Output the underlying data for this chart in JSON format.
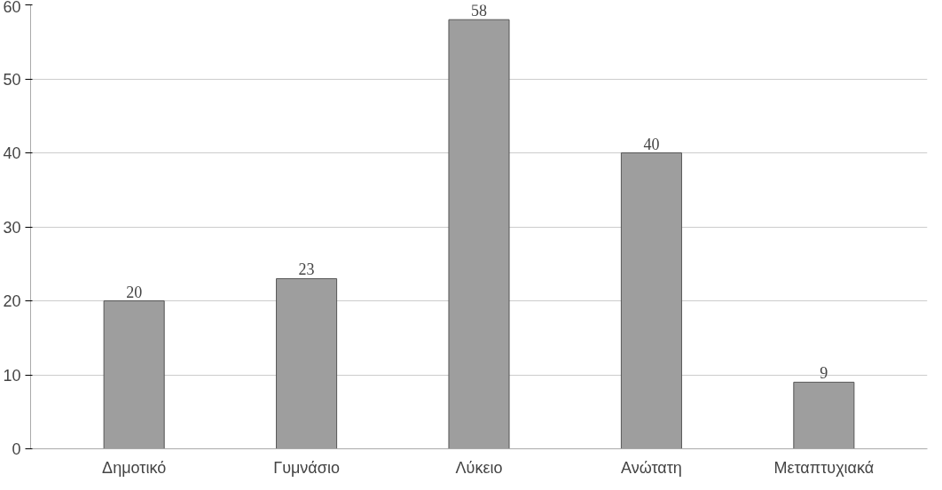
{
  "chart_data": {
    "type": "bar",
    "categories": [
      "Δημοτικό",
      "Γυμνάσιο",
      "Λύκειο",
      "Ανώτατη",
      "Μεταπτυχιακά"
    ],
    "values": [
      20,
      23,
      58,
      40,
      9
    ],
    "color": "#9e9e9e",
    "ylim": [
      0,
      60
    ],
    "yticks": [
      0,
      10,
      20,
      30,
      40,
      50,
      60
    ],
    "grid": "y",
    "data_labels": true
  }
}
